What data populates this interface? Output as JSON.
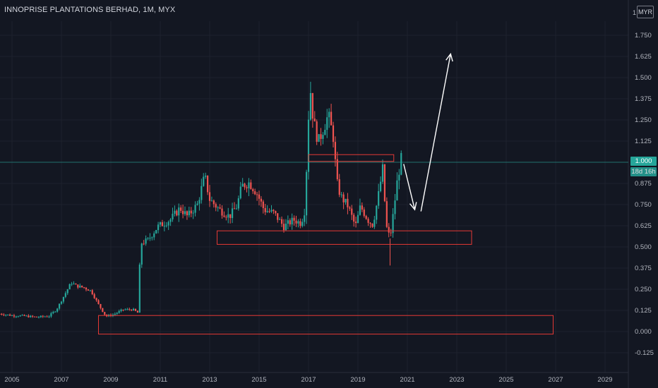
{
  "header": {
    "title": "INNOPRISE PLANTATIONS BERHAD, 1M, MYX",
    "currency_button": "MYR",
    "axis_top_digit": "1"
  },
  "price_tag": {
    "last_price": "1.000",
    "countdown": "18d 16h"
  },
  "colors": {
    "background": "#131722",
    "up": "#26a69a",
    "down": "#ef5350",
    "box_outline": "#e53935",
    "arrow": "#ffffff",
    "grid": "#1e222d",
    "axis_text": "#b2b5be"
  },
  "chart_data": {
    "type": "candlestick",
    "title": "INNOPRISE PLANTATIONS BERHAD, 1M, MYX",
    "interval": "1M",
    "currency": "MYR",
    "y_axis": {
      "position": "right",
      "range": [
        -0.18,
        1.85
      ],
      "ticks": [
        "1.750",
        "1.625",
        "1.500",
        "1.375",
        "1.250",
        "1.125",
        "1.000",
        "0.875",
        "0.750",
        "0.625",
        "0.500",
        "0.375",
        "0.250",
        "0.125",
        "0.000",
        "-0.125"
      ],
      "tick_values": [
        1.75,
        1.625,
        1.5,
        1.375,
        1.25,
        1.125,
        1.0,
        0.875,
        0.75,
        0.625,
        0.5,
        0.375,
        0.25,
        0.125,
        0.0,
        -0.125
      ]
    },
    "x_axis": {
      "range": [
        2004.5,
        2030
      ],
      "ticks": [
        "2005",
        "2007",
        "2009",
        "2011",
        "2013",
        "2015",
        "2017",
        "2019",
        "2021",
        "2023",
        "2025",
        "2027",
        "2029"
      ],
      "tick_values": [
        2005,
        2007,
        2009,
        2011,
        2013,
        2015,
        2017,
        2019,
        2021,
        2023,
        2025,
        2027,
        2029
      ]
    },
    "grid": true,
    "last_price_line": 1.0,
    "price_path": [
      [
        2004.5,
        0.105
      ],
      [
        2005.0,
        0.095
      ],
      [
        2005.5,
        0.092
      ],
      [
        2006.0,
        0.085
      ],
      [
        2006.5,
        0.092
      ],
      [
        2006.8,
        0.13
      ],
      [
        2007.1,
        0.21
      ],
      [
        2007.4,
        0.29
      ],
      [
        2007.6,
        0.27
      ],
      [
        2007.9,
        0.26
      ],
      [
        2008.2,
        0.24
      ],
      [
        2008.5,
        0.16
      ],
      [
        2008.8,
        0.09
      ],
      [
        2009.1,
        0.1
      ],
      [
        2009.5,
        0.13
      ],
      [
        2009.9,
        0.13
      ],
      [
        2010.1,
        0.11
      ],
      [
        2010.2,
        0.52
      ],
      [
        2010.5,
        0.54
      ],
      [
        2010.9,
        0.62
      ],
      [
        2011.4,
        0.66
      ],
      [
        2011.8,
        0.73
      ],
      [
        2012.1,
        0.68
      ],
      [
        2012.5,
        0.75
      ],
      [
        2012.8,
        0.92
      ],
      [
        2013.0,
        0.78
      ],
      [
        2013.4,
        0.72
      ],
      [
        2013.8,
        0.68
      ],
      [
        2014.1,
        0.74
      ],
      [
        2014.3,
        0.86
      ],
      [
        2014.6,
        0.88
      ],
      [
        2014.9,
        0.82
      ],
      [
        2015.2,
        0.72
      ],
      [
        2015.6,
        0.7
      ],
      [
        2016.0,
        0.62
      ],
      [
        2016.4,
        0.66
      ],
      [
        2016.7,
        0.64
      ],
      [
        2016.85,
        0.72
      ],
      [
        2016.95,
        1.08
      ],
      [
        2017.05,
        1.47
      ],
      [
        2017.2,
        1.24
      ],
      [
        2017.4,
        1.12
      ],
      [
        2017.6,
        1.2
      ],
      [
        2017.8,
        1.28
      ],
      [
        2018.0,
        1.15
      ],
      [
        2018.15,
        0.88
      ],
      [
        2018.3,
        0.8
      ],
      [
        2018.6,
        0.74
      ],
      [
        2018.9,
        0.62
      ],
      [
        2019.1,
        0.74
      ],
      [
        2019.4,
        0.66
      ],
      [
        2019.6,
        0.63
      ],
      [
        2019.8,
        0.78
      ],
      [
        2020.0,
        0.96
      ],
      [
        2020.15,
        0.62
      ],
      [
        2020.3,
        0.55
      ],
      [
        2020.45,
        0.72
      ],
      [
        2020.6,
        0.9
      ],
      [
        2020.75,
        1.02
      ]
    ],
    "annotations": [
      {
        "type": "rectangle",
        "x": [
          2017.0,
          2020.45
        ],
        "y": [
          1.005,
          1.045
        ],
        "color": "#e53935"
      },
      {
        "type": "rectangle",
        "x": [
          2013.3,
          2023.6
        ],
        "y": [
          0.515,
          0.595
        ],
        "color": "#e53935"
      },
      {
        "type": "rectangle",
        "x": [
          2008.5,
          2026.9
        ],
        "y": [
          -0.015,
          0.095
        ],
        "color": "#e53935"
      },
      {
        "type": "arrow",
        "from": [
          2020.85,
          0.99
        ],
        "to": [
          2021.3,
          0.72
        ],
        "color": "#ffffff"
      },
      {
        "type": "arrow",
        "from": [
          2021.55,
          0.71
        ],
        "to": [
          2022.75,
          1.64
        ],
        "color": "#ffffff"
      }
    ]
  }
}
